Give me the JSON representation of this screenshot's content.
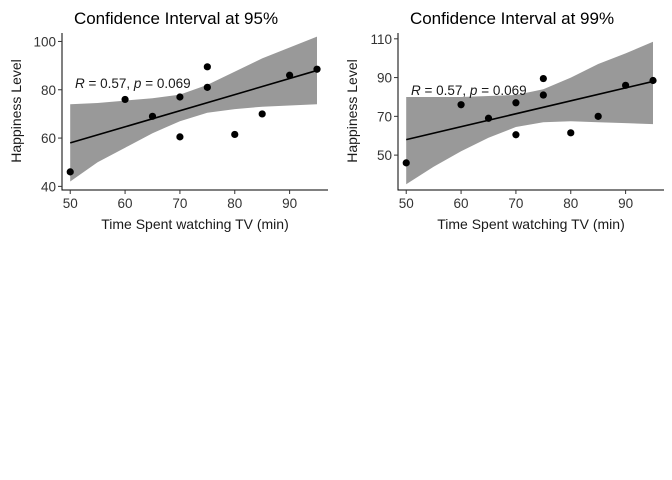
{
  "chart_data": [
    {
      "type": "scatter",
      "title": "Confidence Interval at 95%",
      "xlabel": "Time Spent watching TV (min)",
      "ylabel": "Happiness Level",
      "annotation": "R = 0.57, p = 0.069",
      "xlim": [
        48.5,
        97
      ],
      "ylim": [
        38.5,
        103.5
      ],
      "xticks": [
        50,
        60,
        70,
        80,
        90
      ],
      "yticks": [
        40,
        60,
        80,
        100
      ],
      "points": [
        {
          "x": 50,
          "y": 46
        },
        {
          "x": 60,
          "y": 76
        },
        {
          "x": 65,
          "y": 69
        },
        {
          "x": 70,
          "y": 77
        },
        {
          "x": 70,
          "y": 60.5
        },
        {
          "x": 75,
          "y": 81
        },
        {
          "x": 75,
          "y": 89.5
        },
        {
          "x": 80,
          "y": 61.5
        },
        {
          "x": 85,
          "y": 70
        },
        {
          "x": 90,
          "y": 86
        },
        {
          "x": 95,
          "y": 88.5
        }
      ],
      "fit_line": {
        "x": [
          50,
          95
        ],
        "y": [
          58,
          88
        ]
      },
      "band": {
        "x": [
          50,
          55,
          60,
          65,
          70,
          75,
          80,
          85,
          90,
          95
        ],
        "lower": [
          42,
          50,
          56,
          62,
          67,
          70.5,
          72,
          73,
          73.5,
          74
        ],
        "upper": [
          74,
          74.5,
          75.5,
          76.5,
          78,
          82,
          87.5,
          93,
          97.5,
          102
        ]
      }
    },
    {
      "type": "scatter",
      "title": "Confidence Interval at 99%",
      "xlabel": "Time Spent watching TV (min)",
      "ylabel": "Happiness Level",
      "annotation": "R = 0.57, p = 0.069",
      "xlim": [
        48.5,
        97
      ],
      "ylim": [
        32,
        113
      ],
      "xticks": [
        50,
        60,
        70,
        80,
        90
      ],
      "yticks": [
        50,
        70,
        90,
        110
      ],
      "points": [
        {
          "x": 50,
          "y": 46
        },
        {
          "x": 60,
          "y": 76
        },
        {
          "x": 65,
          "y": 69
        },
        {
          "x": 70,
          "y": 77
        },
        {
          "x": 70,
          "y": 60.5
        },
        {
          "x": 75,
          "y": 81
        },
        {
          "x": 75,
          "y": 89.5
        },
        {
          "x": 80,
          "y": 61.5
        },
        {
          "x": 85,
          "y": 70
        },
        {
          "x": 90,
          "y": 86
        },
        {
          "x": 95,
          "y": 88.5
        }
      ],
      "fit_line": {
        "x": [
          50,
          95
        ],
        "y": [
          58,
          88
        ]
      },
      "band": {
        "x": [
          50,
          55,
          60,
          65,
          70,
          75,
          80,
          85,
          90,
          95
        ],
        "lower": [
          35,
          44,
          52,
          59,
          64.5,
          67,
          67.5,
          67,
          66.5,
          66
        ],
        "upper": [
          80,
          80,
          80,
          80.5,
          81,
          84,
          90,
          97,
          102.5,
          108.5
        ]
      }
    }
  ]
}
